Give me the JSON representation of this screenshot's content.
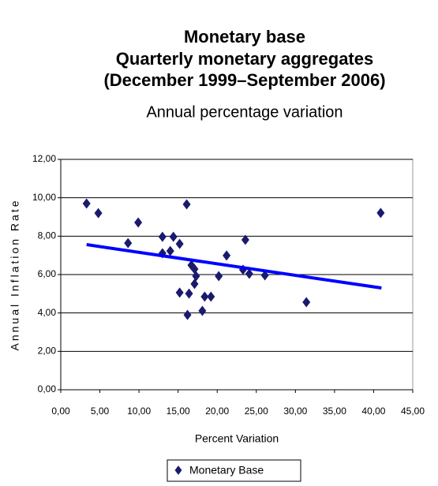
{
  "chart_data": {
    "type": "scatter",
    "title": [
      "Monetary base",
      "Quarterly monetary aggregates",
      "(December 1999–September 2006)"
    ],
    "subtitle": "Annual percentage variation",
    "x_label": "Percent Variation",
    "y_label": "Annual Inflation Rate",
    "xlim": [
      0,
      45
    ],
    "ylim": [
      0,
      12
    ],
    "xticks": [
      {
        "value": 0,
        "label": "0,00"
      },
      {
        "value": 5,
        "label": "5,00"
      },
      {
        "value": 10,
        "label": "10,00"
      },
      {
        "value": 15,
        "label": "15,00"
      },
      {
        "value": 20,
        "label": "20,00"
      },
      {
        "value": 25,
        "label": "25,00"
      },
      {
        "value": 30,
        "label": "30,00"
      },
      {
        "value": 35,
        "label": "35,00"
      },
      {
        "value": 40,
        "label": "40,00"
      },
      {
        "value": 45,
        "label": "45,00"
      }
    ],
    "yticks": [
      {
        "value": 0,
        "label": "0,00"
      },
      {
        "value": 2,
        "label": "2,00"
      },
      {
        "value": 4,
        "label": "4,00"
      },
      {
        "value": 6,
        "label": "6,00"
      },
      {
        "value": 8,
        "label": "8,00"
      },
      {
        "value": 10,
        "label": "10,00"
      },
      {
        "value": 12,
        "label": "12,00"
      }
    ],
    "grid": true,
    "series": [
      {
        "name": "Monetary Base",
        "color": "#1a1a6e",
        "x": [
          3.3,
          4.8,
          8.6,
          9.9,
          13.0,
          13.0,
          14.0,
          14.4,
          15.2,
          15.2,
          16.1,
          16.2,
          16.4,
          16.7,
          17.1,
          17.3,
          17.1,
          18.1,
          18.4,
          19.2,
          20.2,
          21.2,
          23.3,
          23.6,
          24.1,
          26.1,
          31.4,
          40.9
        ],
        "values": [
          9.7,
          9.2,
          7.64,
          8.71,
          7.97,
          7.11,
          7.23,
          7.97,
          7.6,
          5.06,
          9.66,
          3.9,
          5.01,
          6.49,
          6.29,
          5.92,
          5.51,
          4.11,
          4.85,
          4.85,
          5.92,
          6.99,
          6.25,
          7.81,
          6.04,
          5.96,
          4.56,
          9.21
        ]
      }
    ],
    "trendline": {
      "color": "#0000ff",
      "x": [
        3.3,
        41.0
      ],
      "values": [
        7.56,
        5.3
      ]
    },
    "legend": "bottom"
  }
}
